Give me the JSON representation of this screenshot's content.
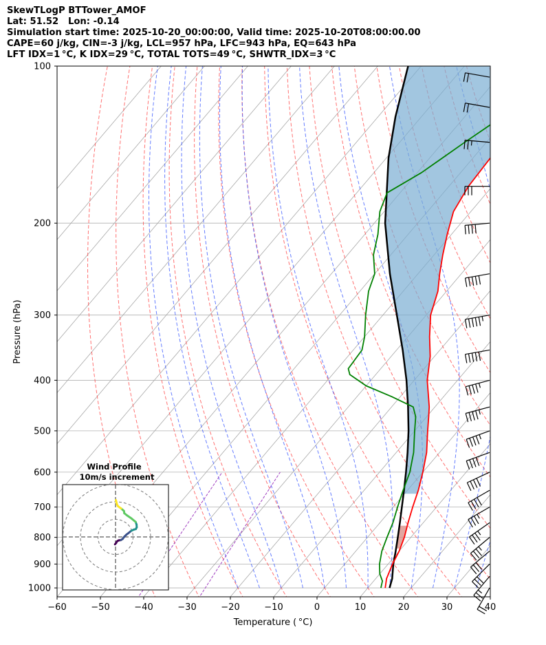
{
  "header": {
    "line1": "SkewTLogP BTTower_AMOF",
    "line2": "Lat: 51.52   Lon: -0.14",
    "line3": "Simulation start time: 2025-10-20_00:00:00, Valid time: 2025-10-20T08:00:00.00",
    "line4": "CAPE=60 j/kg, CIN=-3 j/kg, LCL=957 hPa, LFC=943 hPa, EQ=643 hPa",
    "line5": "LFT IDX=1 °C, K IDX=29 °C, TOTAL TOTS=49 °C, SHWTR_IDX=3 °C"
  },
  "chart_data": {
    "type": "skewt",
    "xlabel": "Temperature ( °C)",
    "ylabel": "Pressure (hPa)",
    "xlim": [
      -60,
      40
    ],
    "ylim": [
      1040,
      100
    ],
    "x_ticks": [
      -60,
      -50,
      -40,
      -30,
      -20,
      -10,
      0,
      10,
      20,
      30,
      40
    ],
    "x_tick_labels": [
      "−60",
      "−50",
      "−40",
      "−30",
      "−20",
      "−10",
      "0",
      "10",
      "20",
      "30",
      "40"
    ],
    "y_ticks": [
      1000,
      900,
      800,
      700,
      600,
      500,
      400,
      300,
      200,
      100
    ],
    "y_tick_labels": [
      "1000",
      "900",
      "800",
      "700",
      "600",
      "500",
      "400",
      "300",
      "200",
      "100"
    ],
    "temperature_profile": {
      "color": "#ff0000",
      "points": [
        [
          1000,
          14
        ],
        [
          960,
          12.5
        ],
        [
          900,
          11
        ],
        [
          850,
          10
        ],
        [
          800,
          8.5
        ],
        [
          750,
          6.5
        ],
        [
          700,
          4.5
        ],
        [
          650,
          2.5
        ],
        [
          600,
          0
        ],
        [
          550,
          -3
        ],
        [
          500,
          -7
        ],
        [
          470,
          -9.5
        ],
        [
          450,
          -11.3
        ],
        [
          430,
          -13.5
        ],
        [
          400,
          -17
        ],
        [
          360,
          -21
        ],
        [
          330,
          -25
        ],
        [
          300,
          -29
        ],
        [
          270,
          -32
        ],
        [
          250,
          -35
        ],
        [
          230,
          -38
        ],
        [
          210,
          -41
        ],
        [
          190,
          -44
        ],
        [
          170,
          -45.5
        ],
        [
          150,
          -46
        ],
        [
          130,
          -46.5
        ],
        [
          115,
          -47
        ],
        [
          100,
          -46.5
        ]
      ]
    },
    "dewpoint_profile": {
      "color": "#008000",
      "points": [
        [
          1000,
          13
        ],
        [
          970,
          12
        ],
        [
          940,
          10
        ],
        [
          900,
          8
        ],
        [
          850,
          6
        ],
        [
          800,
          4.5
        ],
        [
          750,
          3
        ],
        [
          700,
          1
        ],
        [
          650,
          -1
        ],
        [
          600,
          -3
        ],
        [
          550,
          -6
        ],
        [
          500,
          -10
        ],
        [
          470,
          -12.5
        ],
        [
          450,
          -15
        ],
        [
          430,
          -22
        ],
        [
          410,
          -30
        ],
        [
          390,
          -36
        ],
        [
          380,
          -37.5
        ],
        [
          350,
          -38
        ],
        [
          330,
          -40
        ],
        [
          300,
          -44
        ],
        [
          270,
          -48
        ],
        [
          250,
          -50
        ],
        [
          230,
          -54
        ],
        [
          210,
          -57
        ],
        [
          190,
          -61
        ],
        [
          175,
          -63
        ],
        [
          160,
          -59
        ],
        [
          140,
          -55
        ],
        [
          120,
          -50
        ],
        [
          100,
          -44
        ]
      ]
    },
    "parcel_profile": {
      "color": "#000000",
      "points": [
        [
          1000,
          15
        ],
        [
          960,
          13.8
        ],
        [
          900,
          11.2
        ],
        [
          850,
          9.2
        ],
        [
          800,
          7.0
        ],
        [
          750,
          4.6
        ],
        [
          700,
          2.0
        ],
        [
          650,
          -0.8
        ],
        [
          600,
          -3.9
        ],
        [
          550,
          -7.4
        ],
        [
          500,
          -11.4
        ],
        [
          450,
          -16.2
        ],
        [
          400,
          -21.8
        ],
        [
          350,
          -28.6
        ],
        [
          300,
          -36.8
        ],
        [
          250,
          -46.5
        ],
        [
          200,
          -57.5
        ],
        [
          150,
          -69.5
        ],
        [
          125,
          -76
        ],
        [
          100,
          -83
        ]
      ]
    },
    "cape_shading_color": "#7aaed3",
    "cin_shading_color": "#d88a80",
    "isotherm_color": "#a6a6a6",
    "dry_adiabat_color": "#ff4040",
    "moist_adiabat_color": "#3050ff",
    "mixing_ratio_color": "#a040c0",
    "wind_barbs": [
      {
        "p": 1000,
        "speed_kt": 20,
        "dir_deg": 210
      },
      {
        "p": 950,
        "speed_kt": 25,
        "dir_deg": 220
      },
      {
        "p": 900,
        "speed_kt": 30,
        "dir_deg": 225
      },
      {
        "p": 850,
        "speed_kt": 30,
        "dir_deg": 230
      },
      {
        "p": 800,
        "speed_kt": 35,
        "dir_deg": 230
      },
      {
        "p": 750,
        "speed_kt": 35,
        "dir_deg": 235
      },
      {
        "p": 700,
        "speed_kt": 35,
        "dir_deg": 240
      },
      {
        "p": 650,
        "speed_kt": 40,
        "dir_deg": 240
      },
      {
        "p": 600,
        "speed_kt": 40,
        "dir_deg": 245
      },
      {
        "p": 550,
        "speed_kt": 40,
        "dir_deg": 250
      },
      {
        "p": 500,
        "speed_kt": 45,
        "dir_deg": 250
      },
      {
        "p": 450,
        "speed_kt": 45,
        "dir_deg": 255
      },
      {
        "p": 400,
        "speed_kt": 45,
        "dir_deg": 255
      },
      {
        "p": 350,
        "speed_kt": 50,
        "dir_deg": 260
      },
      {
        "p": 300,
        "speed_kt": 55,
        "dir_deg": 260
      },
      {
        "p": 250,
        "speed_kt": 50,
        "dir_deg": 260
      },
      {
        "p": 200,
        "speed_kt": 40,
        "dir_deg": 265
      },
      {
        "p": 170,
        "speed_kt": 30,
        "dir_deg": 270
      },
      {
        "p": 140,
        "speed_kt": 25,
        "dir_deg": 275
      },
      {
        "p": 120,
        "speed_kt": 20,
        "dir_deg": 280
      },
      {
        "p": 105,
        "speed_kt": 20,
        "dir_deg": 280
      }
    ],
    "hodograph": {
      "title": "Wind Profile",
      "subtitle": "10m/s increment",
      "ring_step_ms": 10,
      "rings": 3,
      "points": [
        [
          -0.3,
          -4.2
        ],
        [
          0.3,
          -3.5
        ],
        [
          0.7,
          -2.7
        ],
        [
          1.3,
          -2.2
        ],
        [
          2.0,
          -1.9
        ],
        [
          3.0,
          -1.8
        ],
        [
          4.0,
          -1.2
        ],
        [
          5.0,
          0.1
        ],
        [
          6.2,
          1.3
        ],
        [
          7.5,
          2.3
        ],
        [
          9.0,
          3.5
        ],
        [
          10.5,
          4.2
        ],
        [
          11.6,
          4.5
        ],
        [
          12.1,
          5.5
        ],
        [
          12.0,
          7.0
        ],
        [
          11.5,
          8.5
        ],
        [
          9.0,
          10.6
        ],
        [
          6.5,
          12.3
        ],
        [
          5.0,
          13.5
        ],
        [
          4.8,
          14.8
        ],
        [
          3.2,
          16.2
        ],
        [
          1.4,
          17.5
        ],
        [
          0.8,
          18.6
        ],
        [
          0.5,
          19.8
        ],
        [
          0.2,
          21.0
        ]
      ]
    }
  }
}
